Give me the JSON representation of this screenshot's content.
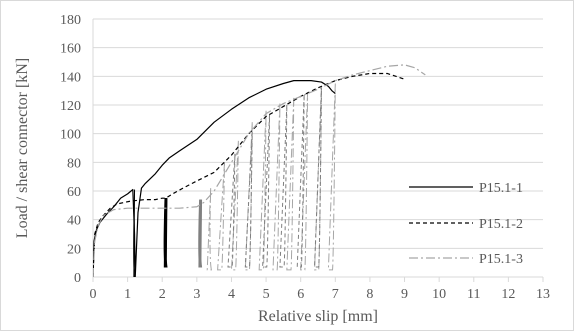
{
  "chart_data": {
    "type": "line",
    "title": "",
    "xlabel": "Relative slip [mm]",
    "ylabel": "Load / shear connector [kN]",
    "xlim": [
      0,
      13
    ],
    "ylim": [
      0,
      180
    ],
    "x_ticks": [
      0,
      1,
      2,
      3,
      4,
      5,
      6,
      7,
      8,
      9,
      10,
      11,
      12,
      13
    ],
    "y_ticks": [
      0,
      20,
      40,
      60,
      80,
      100,
      120,
      140,
      160,
      180
    ],
    "x_tick_labels": [
      "0",
      "1",
      "2",
      "3",
      "4",
      "5",
      "6",
      "7",
      "8",
      "9",
      "10",
      "11",
      "12",
      "13"
    ],
    "y_tick_labels": [
      "0",
      "20",
      "40",
      "60",
      "80",
      "100",
      "120",
      "140",
      "160",
      "180"
    ],
    "grid": "horizontal",
    "legend_position": "right",
    "colors": {
      "axis": "#d9d9d9",
      "grid": "#d9d9d9",
      "text": "#595959",
      "series_1": "#000000",
      "series_2": "#000000",
      "series_3": "#a6a6a6"
    },
    "series": [
      {
        "name": "P15.1-1",
        "style": "solid",
        "x": [
          0,
          0.03,
          0.1,
          0.2,
          0.4,
          0.6,
          0.8,
          1.0,
          1.1,
          1.15,
          1.2,
          1.22,
          1.3,
          1.4,
          1.5,
          1.8,
          2.0,
          2.2,
          2.5,
          3.0,
          3.5,
          4.0,
          4.5,
          5.0,
          5.5,
          5.8,
          6.0,
          6.3,
          6.6,
          6.8,
          6.9,
          7.0
        ],
        "y": [
          0,
          25,
          33,
          38,
          44,
          49,
          55,
          58,
          60,
          61,
          30,
          0,
          45,
          62,
          65,
          72,
          78,
          83,
          88,
          96,
          108,
          117,
          125,
          131,
          135,
          137,
          137,
          137,
          136,
          133,
          130,
          128
        ]
      },
      {
        "name": "P15.1-2",
        "style": "dashed",
        "x": [
          0,
          0.05,
          0.15,
          0.3,
          0.5,
          0.7,
          0.9,
          1.1,
          1.5,
          1.8,
          2.0,
          2.1,
          2.3,
          2.6,
          3.0,
          3.5,
          4.0,
          4.5,
          5.0,
          5.5,
          6.0,
          6.5,
          7.0,
          7.5,
          8.0,
          8.5,
          9.0
        ],
        "y": [
          0,
          30,
          38,
          43,
          48,
          51,
          52,
          53,
          54,
          54,
          55,
          55,
          58,
          62,
          67,
          73,
          85,
          100,
          112,
          119,
          126,
          132,
          137,
          140,
          142,
          142,
          138
        ]
      },
      {
        "name": "P15.1-3",
        "style": "dash-dot",
        "x": [
          0,
          0.05,
          0.15,
          0.3,
          0.6,
          1.0,
          1.5,
          2.0,
          2.5,
          3.0,
          3.2,
          3.5,
          4.0,
          4.5,
          5.0,
          5.5,
          6.0,
          6.5,
          7.0,
          7.5,
          8.0,
          8.5,
          9.0,
          9.3,
          9.6
        ],
        "y": [
          0,
          25,
          36,
          43,
          47,
          48,
          48,
          48,
          48,
          49,
          52,
          60,
          80,
          100,
          114,
          121,
          126,
          131,
          137,
          141,
          144,
          147,
          148,
          146,
          141
        ]
      }
    ]
  }
}
